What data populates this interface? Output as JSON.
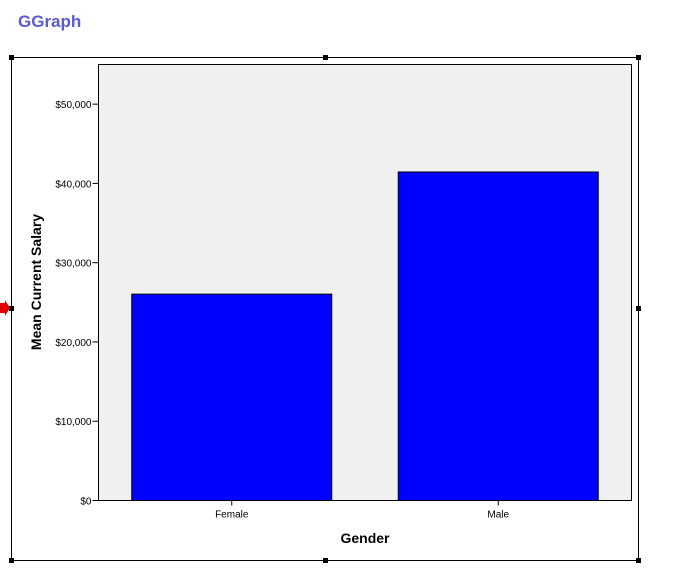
{
  "header": {
    "title": "GGraph"
  },
  "colors": {
    "title": "#5b5bd6",
    "bar_fill": "#0000ff",
    "plot_background": "#f0f0f0",
    "selection_marker": "#e00000"
  },
  "icons": {
    "selection_marker": "red-arrow-marker-icon"
  },
  "chart_data": {
    "type": "bar",
    "categories": [
      "Female",
      "Male"
    ],
    "values": [
      26031.92,
      41441.78
    ],
    "xlabel": "Gender",
    "ylabel": "Mean Current Salary",
    "ylim": [
      0,
      55000
    ],
    "yticks": [
      0,
      10000,
      20000,
      30000,
      40000,
      50000
    ],
    "ytick_labels": [
      "$0",
      "$10,000",
      "$20,000",
      "$30,000",
      "$40,000",
      "$50,000"
    ],
    "grid": false,
    "legend": "none"
  }
}
